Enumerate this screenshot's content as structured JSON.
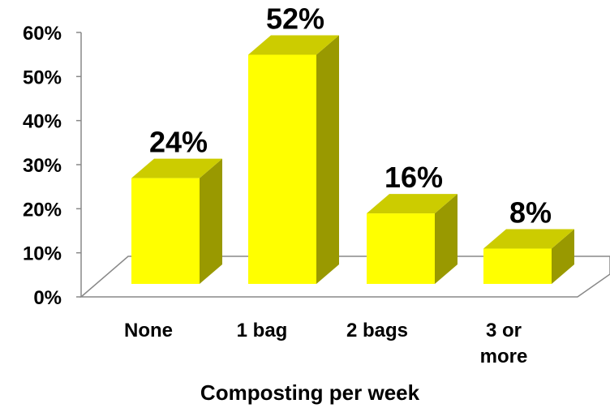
{
  "chart_data": {
    "type": "bar",
    "categories": [
      "None",
      "1 bag",
      "2 bags",
      "3 or more"
    ],
    "category_lines": [
      [
        "None"
      ],
      [
        "1 bag"
      ],
      [
        "2 bags"
      ],
      [
        "3 or",
        "more"
      ]
    ],
    "values": [
      24,
      52,
      16,
      8
    ],
    "data_labels": [
      "24%",
      "52%",
      "16%",
      "8%"
    ],
    "title": "",
    "xlabel": "Composting per week",
    "ylabel": "",
    "ylim": [
      0,
      60
    ],
    "yticks": [
      0,
      10,
      20,
      30,
      40,
      50,
      60
    ],
    "ytick_labels": [
      "0%",
      "10%",
      "20%",
      "30%",
      "40%",
      "50%",
      "60%"
    ],
    "grid": false,
    "legend": "none",
    "style": "3d",
    "colors": {
      "bar_front": "#FFFF00",
      "bar_top": "#CCCC00",
      "bar_side": "#999900",
      "axis": "#888888"
    }
  }
}
